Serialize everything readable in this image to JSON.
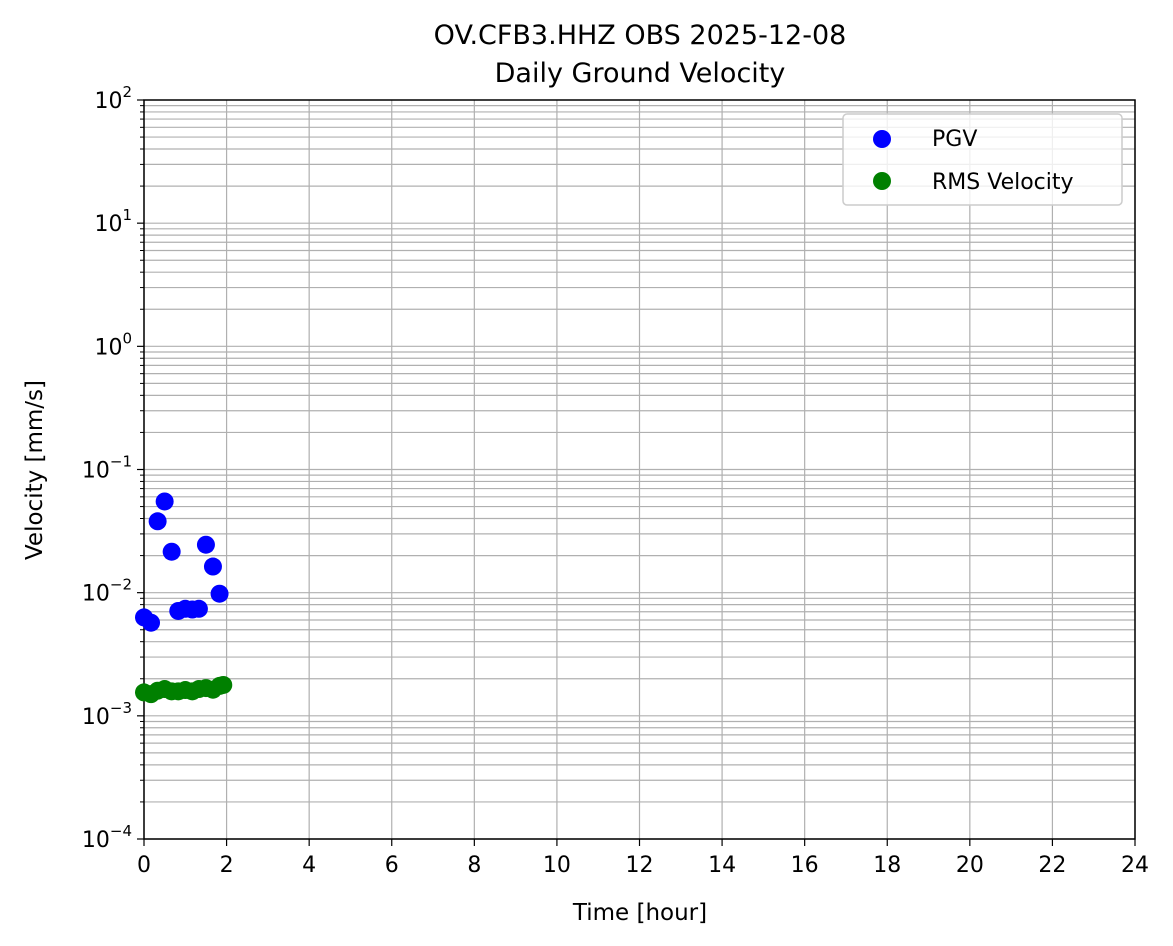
{
  "chart_data": {
    "type": "scatter",
    "title": "OV.CFB3.HHZ OBS 2025-12-08",
    "subtitle": "Daily Ground Velocity",
    "xlabel": "Time [hour]",
    "ylabel": "Velocity [mm/s]",
    "xlim": [
      0,
      24
    ],
    "ylim": [
      0.0001,
      100
    ],
    "yscale": "log",
    "grid": true,
    "grid_minor": true,
    "legend_position": "top-right",
    "x_ticks": [
      "0",
      "2",
      "4",
      "6",
      "8",
      "10",
      "12",
      "14",
      "16",
      "18",
      "20",
      "22",
      "24"
    ],
    "y_ticks": [
      {
        "base": "10",
        "exp": "−4",
        "value": 0.0001
      },
      {
        "base": "10",
        "exp": "−3",
        "value": 0.001
      },
      {
        "base": "10",
        "exp": "−2",
        "value": 0.01
      },
      {
        "base": "10",
        "exp": "−1",
        "value": 0.1
      },
      {
        "base": "10",
        "exp": "0",
        "value": 1
      },
      {
        "base": "10",
        "exp": "1",
        "value": 10
      },
      {
        "base": "10",
        "exp": "2",
        "value": 100
      }
    ],
    "series": [
      {
        "name": "PGV",
        "color": "#0000ff",
        "points": [
          [
            0.0,
            0.0063
          ],
          [
            0.17,
            0.0057
          ],
          [
            0.33,
            0.038
          ],
          [
            0.5,
            0.055
          ],
          [
            0.67,
            0.0215
          ],
          [
            0.83,
            0.0071
          ],
          [
            1.0,
            0.0074
          ],
          [
            1.17,
            0.0073
          ],
          [
            1.33,
            0.0074
          ],
          [
            1.5,
            0.0245
          ],
          [
            1.67,
            0.0163
          ],
          [
            1.83,
            0.0098
          ]
        ]
      },
      {
        "name": "RMS Velocity",
        "color": "#008000",
        "points": [
          [
            0.0,
            0.00155
          ],
          [
            0.17,
            0.0015
          ],
          [
            0.33,
            0.0016
          ],
          [
            0.5,
            0.00165
          ],
          [
            0.67,
            0.00158
          ],
          [
            0.83,
            0.00158
          ],
          [
            1.0,
            0.00162
          ],
          [
            1.17,
            0.00158
          ],
          [
            1.33,
            0.00165
          ],
          [
            1.5,
            0.00168
          ],
          [
            1.67,
            0.00163
          ],
          [
            1.83,
            0.00175
          ],
          [
            1.92,
            0.00178
          ]
        ]
      }
    ]
  }
}
